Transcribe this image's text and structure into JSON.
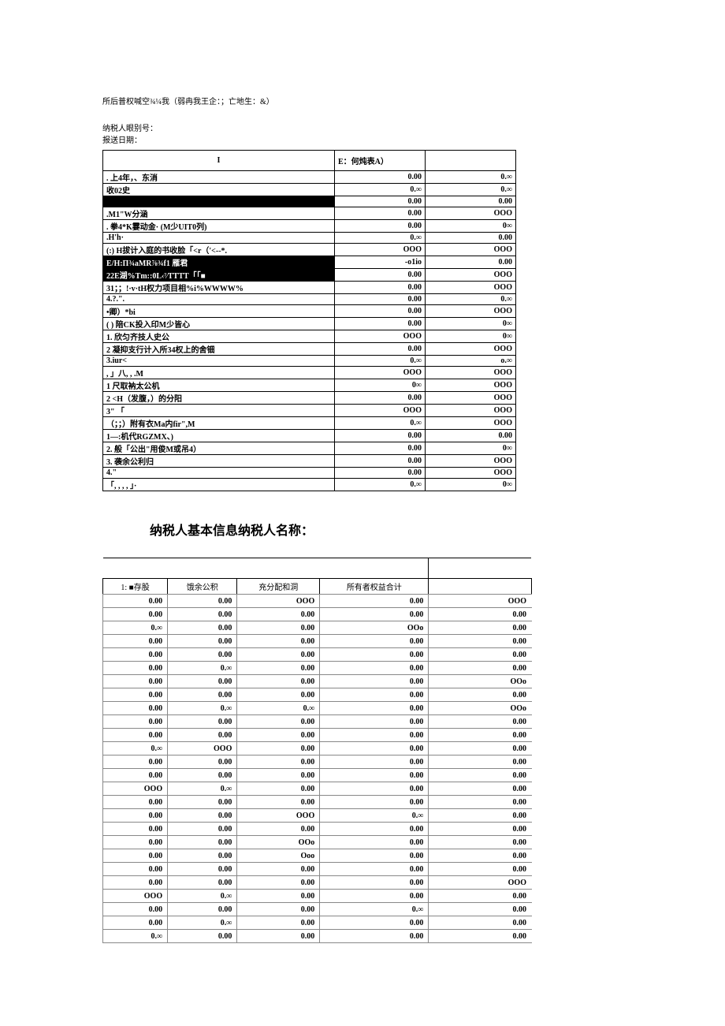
{
  "topNote": "所后普权喊空¾¼我（弱冉我王企：；亡地生：&）",
  "meta": {
    "line1": "纳税人眼别号：",
    "line2": "报送日期："
  },
  "table1": {
    "header": {
      "c1": "I",
      "c2": "E：何炖表A）",
      "c3": ""
    },
    "rows": [
      {
        "black": false,
        "c1": ". 上4年，、东消",
        "c2": "0.00",
        "c3": "0.∞"
      },
      {
        "black": false,
        "c1": "     收02史",
        "c2": "0.∞",
        "c3": "0.∞"
      },
      {
        "black": true,
        "c1": "",
        "c2": "0.00",
        "c3": "0.00"
      },
      {
        "black": false,
        "c1": ".M1\"W分涵",
        "c2": "0.00",
        "c3": "OOO"
      },
      {
        "black": false,
        "c1": ". 拳4*K霎动金· (M少UIT0列)",
        "c2": "0.00",
        "c3": "0∞"
      },
      {
        "black": false,
        "c1": "   .H'h·",
        "c2": "0.∞",
        "c3": "0.00"
      },
      {
        "black": false,
        "c1": "(:) H拔计入庭的书收脸「<r（'<--*.",
        "c2": "OOO",
        "c3": "OOO"
      },
      {
        "black": true,
        "c1": "E/H:Π¾aMR⅞¾f1 雁君",
        "c2": "-o1io",
        "c3": "0.00"
      },
      {
        "black": true,
        "c1": "22E湖%Tm::0L‹⁷⁄TTTT「「■",
        "c2": "0.00",
        "c3": "OOO"
      },
      {
        "black": false,
        "c1": "31；；!·v·tH权力项目相%i%WWWW%",
        "c2": "0.00",
        "c3": "OOO"
      },
      {
        "black": false,
        "c1": "4.?.\".",
        "c2": "0.00",
        "c3": "0.∞"
      },
      {
        "black": false,
        "c1": "     •卿）*bi",
        "c2": "0.00",
        "c3": "OOO"
      },
      {
        "black": false,
        "c1": "( ) 陪CK投入印M少皆心",
        "c2": "0.00",
        "c3": "0∞"
      },
      {
        "black": false,
        "c1": "1. 欣匀齐技人史公",
        "c2": "OOO",
        "c3": "0∞"
      },
      {
        "black": false,
        "c1": "2 凝抑支行计入所34权上的舍钿",
        "c2": "0.00",
        "c3": "OOO"
      },
      {
        "black": false,
        "c1": "3.iur<",
        "c2": "0.∞",
        "c3": "o.∞"
      },
      {
        "black": false,
        "c1": ", 」八, , .M",
        "c2": "OOO",
        "c3": "OOO"
      },
      {
        "black": false,
        "c1": "1 尺取衲太公机",
        "c2": "0∞",
        "c3": "OOO"
      },
      {
        "black": false,
        "c1": "2    <H（发腹，）的分阳",
        "c2": "0.00",
        "c3": "OOO"
      },
      {
        "black": false,
        "c1": "3\" 「",
        "c2": "OOO",
        "c3": "OOO"
      },
      {
        "black": false,
        "c1": "（；；）附有衣Ma内fir\",M",
        "c2": "0.∞",
        "c3": "OOO"
      },
      {
        "black": false,
        "c1": "1—:机代RGZMX、)",
        "c2": "0.00",
        "c3": "0.00"
      },
      {
        "black": false,
        "c1": "2. 般「公出\"用俊M或吊4）",
        "c2": "0.00",
        "c3": "0∞"
      },
      {
        "black": false,
        "c1": "3. 袭余公利归",
        "c2": "0.00",
        "c3": "OOO"
      },
      {
        "black": false,
        "c1": "4.\"",
        "c2": "0.00",
        "c3": "OOO"
      },
      {
        "black": false,
        "c1": "   「, , , , 」·",
        "c2": "0.∞",
        "c3": "0∞"
      }
    ]
  },
  "sectionTitle": "纳税人基本信息纳税人名称：",
  "table2": {
    "headers": [
      "1: ■存股",
      "饿余公积",
      "充分配和洞",
      "所有者权益合计",
      ""
    ],
    "rows": [
      [
        "0.00",
        "0.00",
        "OOO",
        "0.00",
        "OOO"
      ],
      [
        "0.00",
        "0.00",
        "0.00",
        "0.00",
        "0.00"
      ],
      [
        "0.∞",
        "0.00",
        "0.00",
        "OOo",
        "0.00"
      ],
      [
        "0.00",
        "0.00",
        "0.00",
        "0.00",
        "0.00"
      ],
      [
        "0.00",
        "0.00",
        "0.00",
        "0.00",
        "0.00"
      ],
      [
        "0.00",
        "0.∞",
        "0.00",
        "0.00",
        "0.00"
      ],
      [
        "0.00",
        "0.00",
        "0.00",
        "0.00",
        "OOo"
      ],
      [
        "0.00",
        "0.00",
        "0.00",
        "0.00",
        "0.00"
      ],
      [
        "0.00",
        "0.∞",
        "0.∞",
        "0.00",
        "OOo"
      ],
      [
        "0.00",
        "0.00",
        "0.00",
        "0.00",
        "0.00"
      ],
      [
        "0.00",
        "0.00",
        "0.00",
        "0.00",
        "0.00"
      ],
      [
        "0.∞",
        "OOO",
        "0.00",
        "0.00",
        "0.00"
      ],
      [
        "0.00",
        "0.00",
        "0.00",
        "0.00",
        "0.00"
      ],
      [
        "0.00",
        "0.00",
        "0.00",
        "0.00",
        "0.00"
      ],
      [
        "OOO",
        "0.∞",
        "0.00",
        "0.00",
        "0.00"
      ],
      [
        "0.00",
        "0.00",
        "0.00",
        "0.00",
        "0.00"
      ],
      [
        "0.00",
        "0.00",
        "OOO",
        "0.∞",
        "0.00"
      ],
      [
        "0.00",
        "0.00",
        "0.00",
        "0.00",
        "0.00"
      ],
      [
        "0.00",
        "0.00",
        "OOo",
        "0.00",
        "0.00"
      ],
      [
        "0.00",
        "0.00",
        "Ooo",
        "0.00",
        "0.00"
      ],
      [
        "0.00",
        "0.00",
        "0.00",
        "0.00",
        "0.00"
      ],
      [
        "0.00",
        "0.00",
        "0.00",
        "0.00",
        "OOO"
      ],
      [
        "OOO",
        "0.∞",
        "0.00",
        "0.00",
        "0.00"
      ],
      [
        "0.00",
        "0.00",
        "0.00",
        "0.∞",
        "0.00"
      ],
      [
        "0.00",
        "0.∞",
        "0.00",
        "0.00",
        "0.00"
      ],
      [
        "0.∞",
        "0.00",
        "0.00",
        "0.00",
        "0.00"
      ]
    ]
  }
}
